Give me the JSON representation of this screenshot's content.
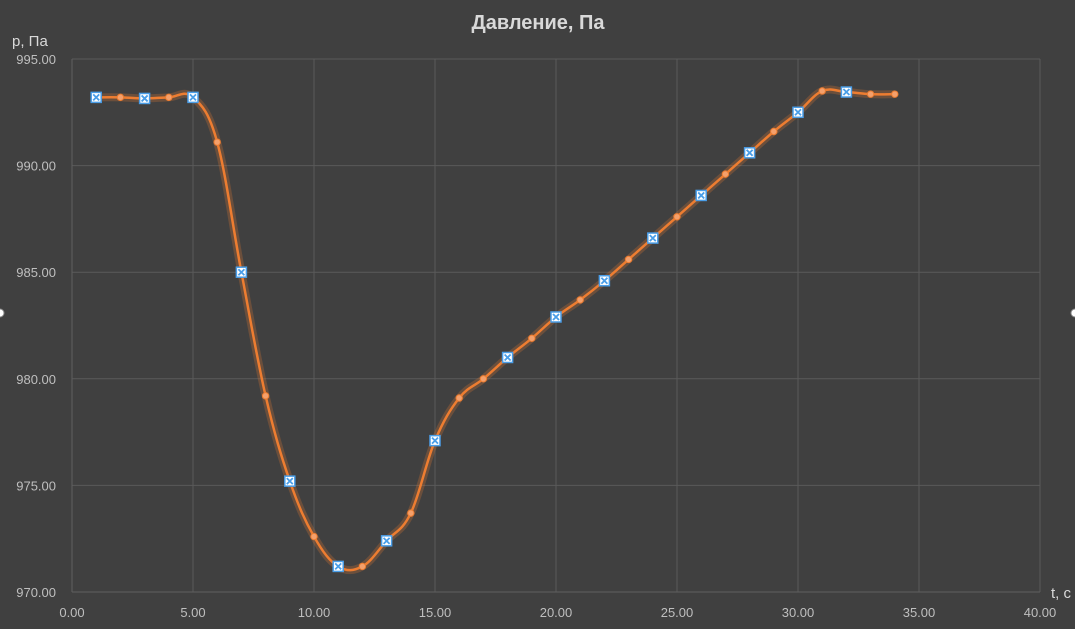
{
  "chart_data": {
    "type": "line",
    "title": "Давление, Па",
    "xlabel": "t, c",
    "ylabel": "p, Па",
    "xlim": [
      0,
      40
    ],
    "ylim": [
      970,
      995
    ],
    "x_ticks": [
      0,
      5,
      10,
      15,
      20,
      25,
      30,
      35,
      40
    ],
    "x_tick_labels": [
      "0.00",
      "5.00",
      "10.00",
      "15.00",
      "20.00",
      "25.00",
      "30.00",
      "35.00",
      "40.00"
    ],
    "y_ticks": [
      970,
      975,
      980,
      985,
      990,
      995
    ],
    "y_tick_labels": [
      "970.00",
      "975.00",
      "980.00",
      "985.00",
      "990.00",
      "995.00"
    ],
    "grid": true,
    "series": [
      {
        "color": "#ed7d31",
        "x": [
          1,
          2,
          3,
          4,
          5,
          6,
          7,
          8,
          9,
          10,
          11,
          12,
          13,
          14,
          15,
          16,
          17,
          18,
          19,
          20,
          21,
          22,
          23,
          24,
          25,
          26,
          27,
          28,
          29,
          30,
          31,
          32,
          33,
          34
        ],
        "y": [
          993.2,
          993.2,
          993.15,
          993.2,
          993.2,
          991.1,
          985.0,
          979.2,
          975.2,
          972.6,
          971.2,
          971.2,
          972.4,
          973.7,
          977.1,
          979.1,
          980.0,
          981.0,
          981.9,
          982.9,
          983.7,
          984.6,
          985.6,
          986.6,
          987.6,
          988.6,
          989.6,
          990.6,
          991.6,
          992.5,
          993.5,
          993.45,
          993.35,
          993.35
        ]
      }
    ],
    "highlighted_points_x": [
      1,
      3,
      5,
      7,
      9,
      11,
      13,
      15,
      18,
      20,
      22,
      24,
      26,
      28,
      30,
      32
    ],
    "highlight_color": "#4a9ee8"
  }
}
